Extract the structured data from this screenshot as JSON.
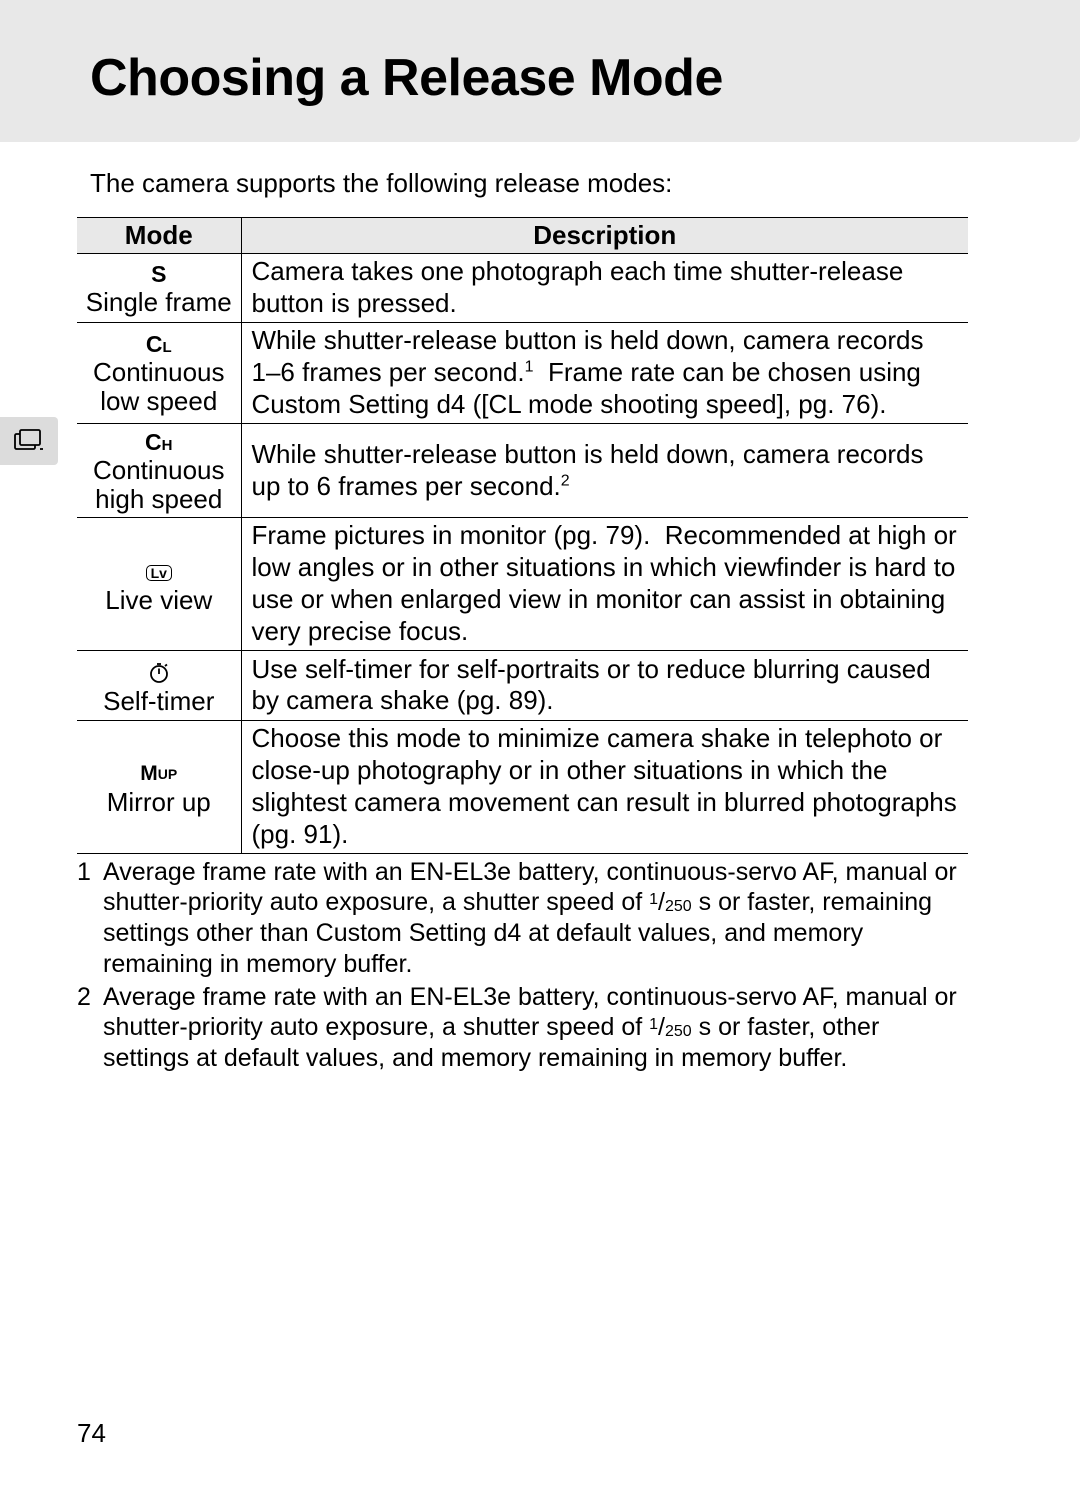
{
  "page": {
    "title": "Choosing a Release Mode",
    "intro": "The camera supports the following release modes:",
    "page_number": "74"
  },
  "table": {
    "headers": {
      "mode": "Mode",
      "description": "Description"
    },
    "rows": [
      {
        "symbol": "S",
        "label": "Single frame",
        "description_html": "Camera takes one photograph each time shutter-release button is pressed."
      },
      {
        "symbol": "CL",
        "label_html": "Continuous<br>low speed",
        "description_html": "While shutter-release button is held down, camera records 1–6 frames per second.<span class=\"sup\">1</span> &nbsp;Frame rate can be chosen using Custom Setting d4 ([CL mode shooting speed], pg. 76)."
      },
      {
        "symbol": "CH",
        "label_html": "Continuous<br>high speed",
        "description_html": "While shutter-release button is held down, camera records up to 6 frames per second.<span class=\"sup\">2</span>"
      },
      {
        "symbol_type": "lv",
        "label": "Live view",
        "description_html": "Frame pictures in monitor (pg. 79). &nbsp;Recommended at high or low angles or in other situations in which viewfinder is hard to use or when enlarged view in monitor can assist in obtaining very precise focus."
      },
      {
        "symbol_type": "timer",
        "label": "Self-timer",
        "description_html": "Use self-timer for self-portraits or to reduce blurring caused by camera shake (pg. 89)."
      },
      {
        "symbol_type": "mup",
        "label": "Mirror up",
        "description_html": "Choose this mode to minimize camera shake in telephoto or close-up photography or in other situations in which the slightest camera movement can result in blurred photographs (pg. 91)."
      }
    ]
  },
  "footnotes": [
    {
      "num": "1",
      "text_html": "Average frame rate with an EN-EL3e battery, continuous-servo AF, manual or shutter-priority auto exposure, a shutter speed of <span class=\"frac-num\">1</span>/<span class=\"frac-den\">250</span> s or faster, remaining settings other than Custom Setting d4 at default values, and memory remaining in memory buffer."
    },
    {
      "num": "2",
      "text_html": "Average frame rate with an EN-EL3e battery, continuous-servo AF, manual or shutter-priority auto exposure, a shutter speed of <span class=\"frac-num\">1</span>/<span class=\"frac-den\">250</span> s or faster, other settings at default values, and memory remaining in memory buffer."
    }
  ]
}
